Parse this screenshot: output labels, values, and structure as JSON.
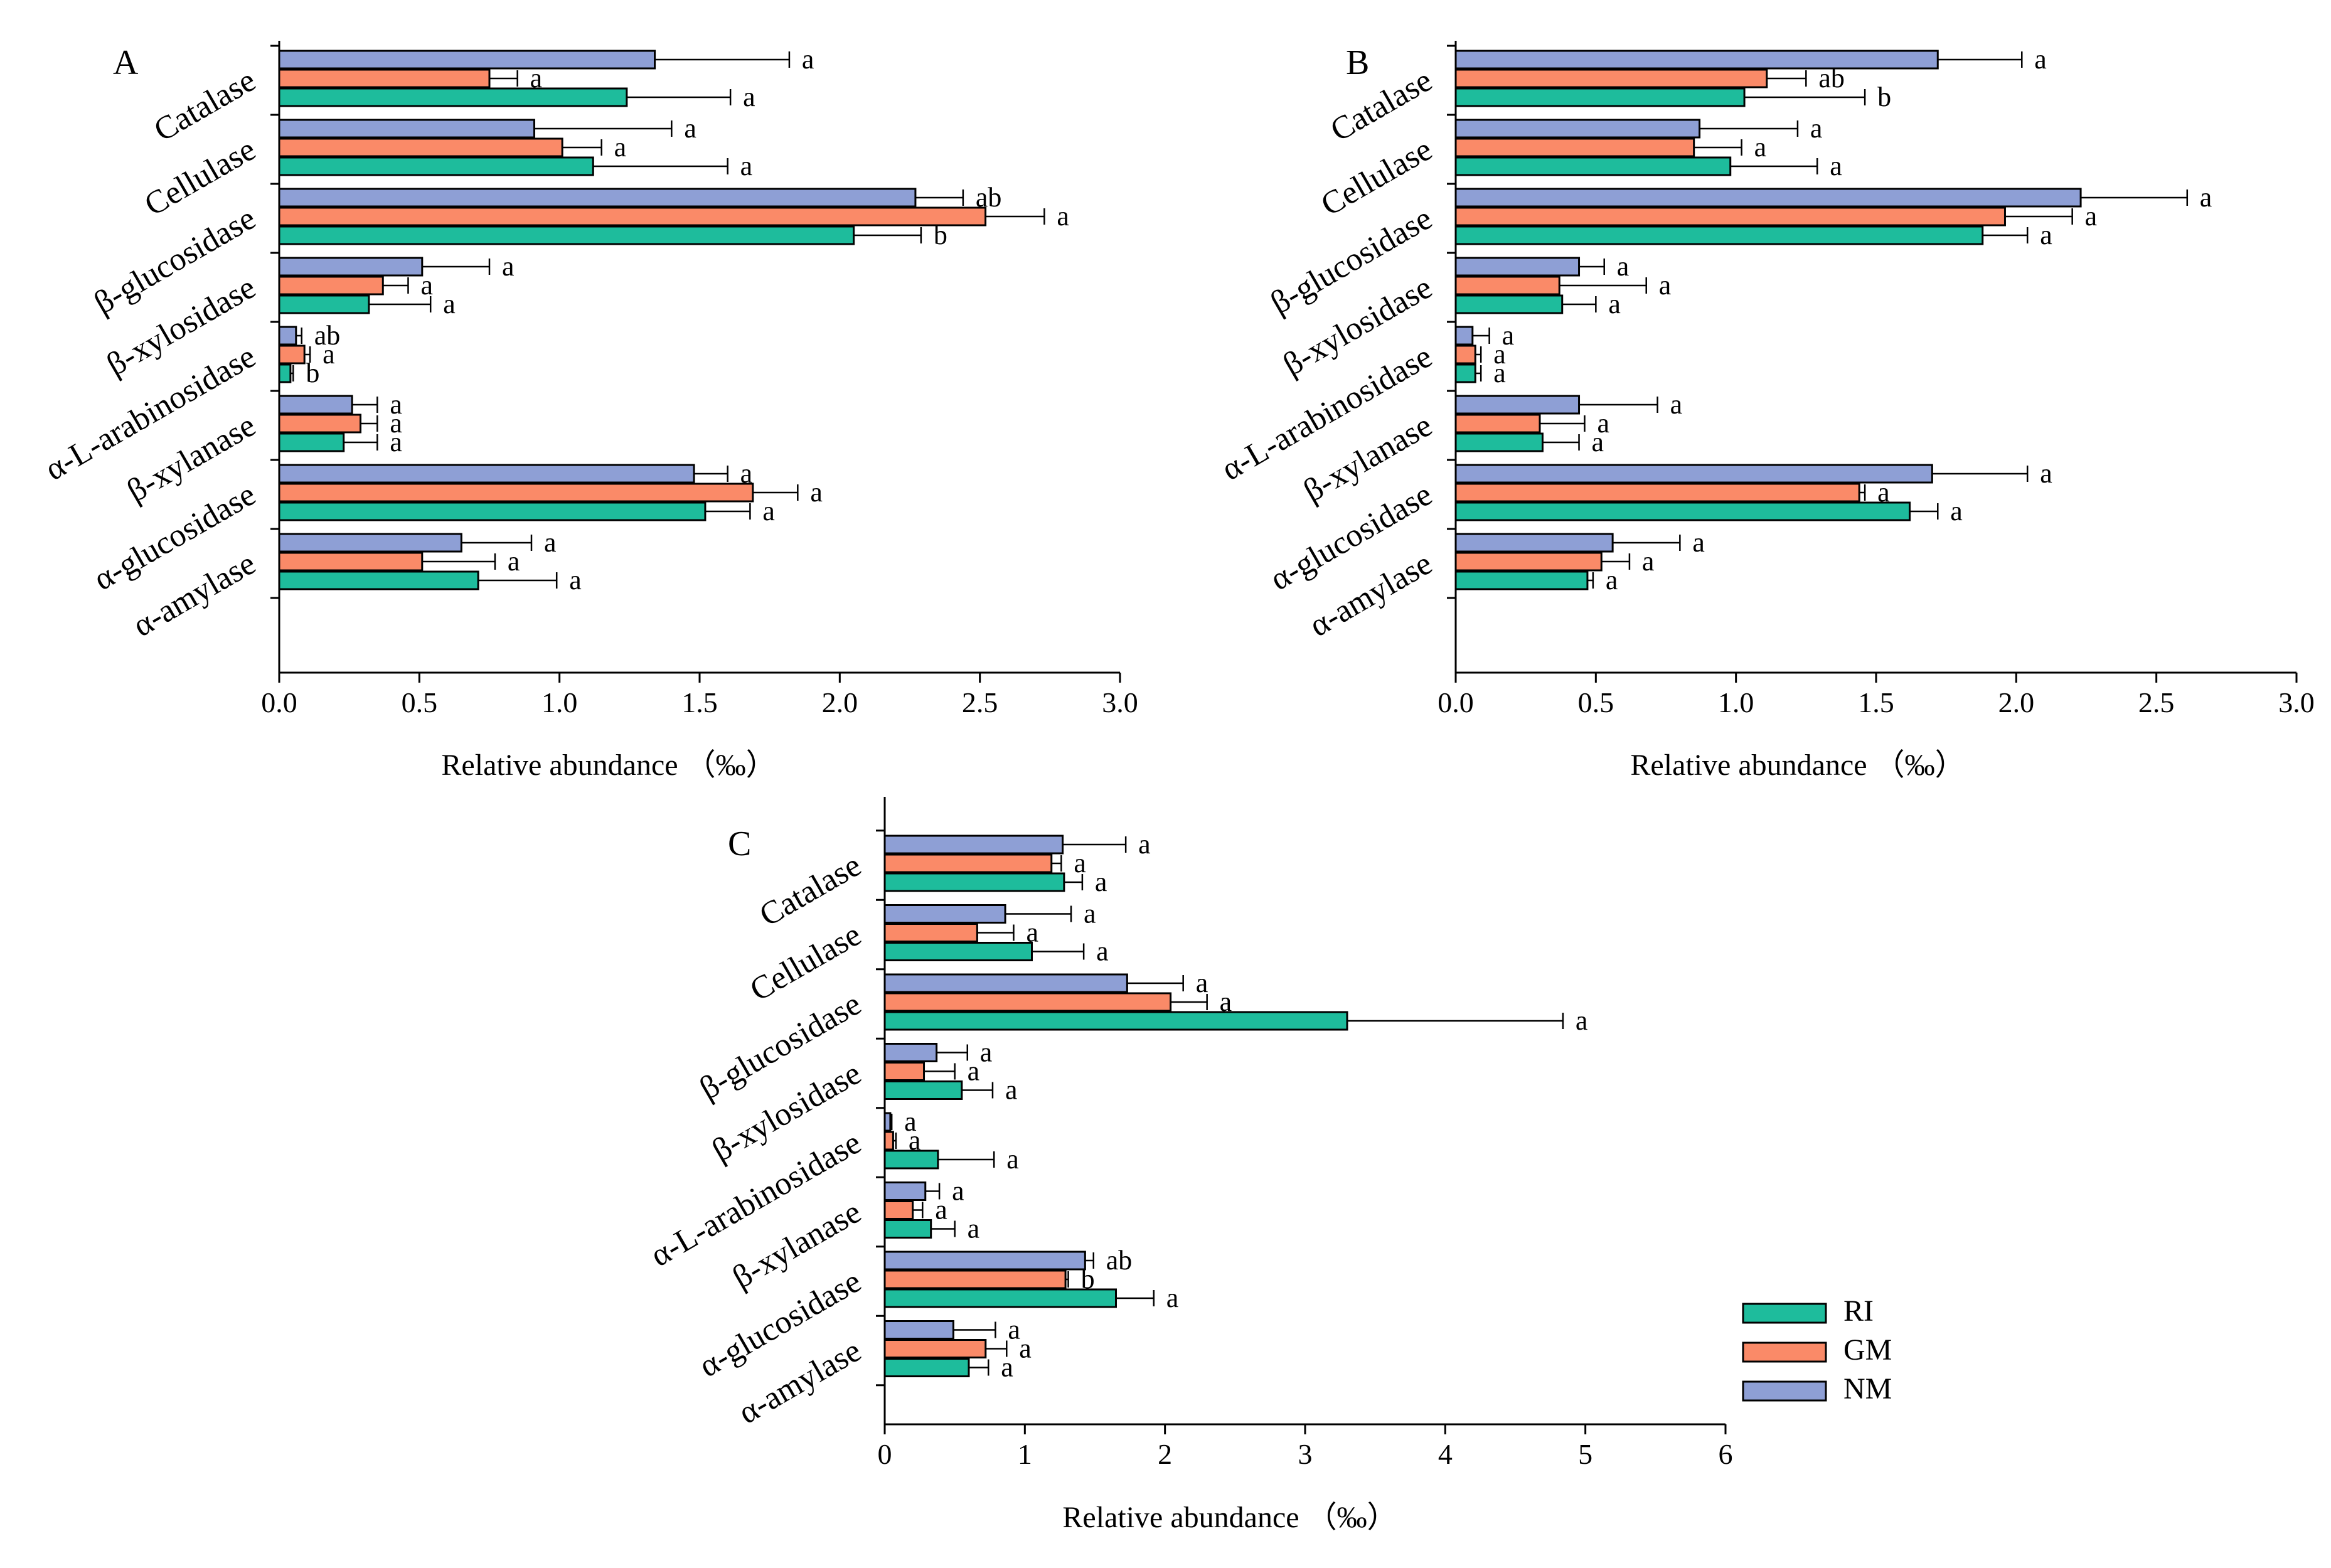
{
  "chart_data": [
    {
      "type": "bar",
      "orientation": "horizontal",
      "panel": "A",
      "title": "",
      "xlabel": "Relative abundance （‰）",
      "ylabel": "",
      "xlim": [
        0,
        3
      ],
      "xticks": [
        "0.0",
        "0.5",
        "1.0",
        "1.5",
        "2.0",
        "2.5",
        "3.0"
      ],
      "categories": [
        "Catalase",
        "Cellulase",
        "β-glucosidase",
        "β-xylosidase",
        "α-L-arabinosidase",
        "β-xylanase",
        "α-glucosidase",
        "α-amylase"
      ],
      "series": [
        {
          "name": "NM",
          "values": [
            1.34,
            0.91,
            2.27,
            0.51,
            0.06,
            0.26,
            1.48,
            0.65
          ],
          "errors": [
            0.48,
            0.49,
            0.17,
            0.24,
            0.02,
            0.09,
            0.12,
            0.25
          ],
          "labels": [
            "a",
            "a",
            "ab",
            "a",
            "ab",
            "a",
            "a",
            "a"
          ]
        },
        {
          "name": "GM",
          "values": [
            0.75,
            1.01,
            2.52,
            0.37,
            0.09,
            0.29,
            1.69,
            0.51
          ],
          "errors": [
            0.1,
            0.14,
            0.21,
            0.09,
            0.02,
            0.06,
            0.16,
            0.26
          ],
          "labels": [
            "a",
            "a",
            "a",
            "a",
            "a",
            "a",
            "a",
            "a"
          ]
        },
        {
          "name": "RI",
          "values": [
            1.24,
            1.12,
            2.05,
            0.32,
            0.04,
            0.23,
            1.52,
            0.71
          ],
          "errors": [
            0.37,
            0.48,
            0.24,
            0.22,
            0.01,
            0.12,
            0.16,
            0.28
          ],
          "labels": [
            "a",
            "a",
            "b",
            "a",
            "b",
            "a",
            "a",
            "a"
          ]
        }
      ]
    },
    {
      "type": "bar",
      "orientation": "horizontal",
      "panel": "B",
      "title": "",
      "xlabel": "Relative abundance （‰）",
      "ylabel": "",
      "xlim": [
        0,
        3
      ],
      "xticks": [
        "0.0",
        "0.5",
        "1.0",
        "1.5",
        "2.0",
        "2.5",
        "3.0"
      ],
      "categories": [
        "Catalase",
        "Cellulase",
        "β-glucosidase",
        "β-xylosidase",
        "α-L-arabinosidase",
        "β-xylanase",
        "α-glucosidase",
        "α-amylase"
      ],
      "series": [
        {
          "name": "NM",
          "values": [
            1.72,
            0.87,
            2.23,
            0.44,
            0.06,
            0.44,
            1.7,
            0.56
          ],
          "errors": [
            0.3,
            0.35,
            0.38,
            0.09,
            0.06,
            0.28,
            0.34,
            0.24
          ],
          "labels": [
            "a",
            "a",
            "a",
            "a",
            "a",
            "a",
            "a",
            "a"
          ]
        },
        {
          "name": "GM",
          "values": [
            1.11,
            0.85,
            1.96,
            0.37,
            0.07,
            0.3,
            1.44,
            0.52
          ],
          "errors": [
            0.14,
            0.17,
            0.24,
            0.31,
            0.02,
            0.16,
            0.02,
            0.1
          ],
          "labels": [
            "ab",
            "a",
            "a",
            "a",
            "a",
            "a",
            "a",
            "a"
          ]
        },
        {
          "name": "RI",
          "values": [
            1.03,
            0.98,
            1.88,
            0.38,
            0.07,
            0.31,
            1.62,
            0.47
          ],
          "errors": [
            0.43,
            0.31,
            0.16,
            0.12,
            0.02,
            0.13,
            0.1,
            0.02
          ],
          "labels": [
            "b",
            "a",
            "a",
            "a",
            "a",
            "a",
            "a",
            "a"
          ]
        }
      ]
    },
    {
      "type": "bar",
      "orientation": "horizontal",
      "panel": "C",
      "title": "",
      "xlabel": "Relative abundance （‰）",
      "ylabel": "",
      "xlim": [
        0,
        6
      ],
      "xticks": [
        "0",
        "1",
        "2",
        "3",
        "4",
        "5",
        "6"
      ],
      "categories": [
        "Catalase",
        "Cellulase",
        "β-glucosidase",
        "β-xylosidase",
        "α-L-arabinosidase",
        "β-xylanase",
        "α-glucosidase",
        "α-amylase"
      ],
      "series": [
        {
          "name": "NM",
          "values": [
            1.27,
            0.86,
            1.73,
            0.37,
            0.04,
            0.29,
            1.43,
            0.49
          ],
          "errors": [
            0.45,
            0.47,
            0.4,
            0.22,
            0.01,
            0.1,
            0.06,
            0.3
          ],
          "labels": [
            "a",
            "a",
            "a",
            "a",
            "a",
            "a",
            "ab",
            "a"
          ]
        },
        {
          "name": "GM",
          "values": [
            1.19,
            0.66,
            2.04,
            0.28,
            0.06,
            0.2,
            1.29,
            0.72
          ],
          "errors": [
            0.07,
            0.26,
            0.26,
            0.22,
            0.02,
            0.07,
            0.02,
            0.15
          ],
          "labels": [
            "a",
            "a",
            "a",
            "a",
            "a",
            "a",
            "b",
            "a"
          ]
        },
        {
          "name": "RI",
          "values": [
            1.28,
            1.05,
            3.3,
            0.55,
            0.38,
            0.33,
            1.65,
            0.6
          ],
          "errors": [
            0.13,
            0.37,
            1.54,
            0.22,
            0.4,
            0.17,
            0.27,
            0.14
          ],
          "labels": [
            "a",
            "a",
            "a",
            "a",
            "a",
            "a",
            "a",
            "a"
          ]
        }
      ],
      "legend": {
        "position": "bottom-right",
        "entries": [
          "RI",
          "GM",
          "NM"
        ]
      }
    }
  ],
  "colors": {
    "RI": "#1ebc9c",
    "GM": "#fa8a68",
    "NM": "#8e9fd5",
    "ink": "#000000"
  }
}
